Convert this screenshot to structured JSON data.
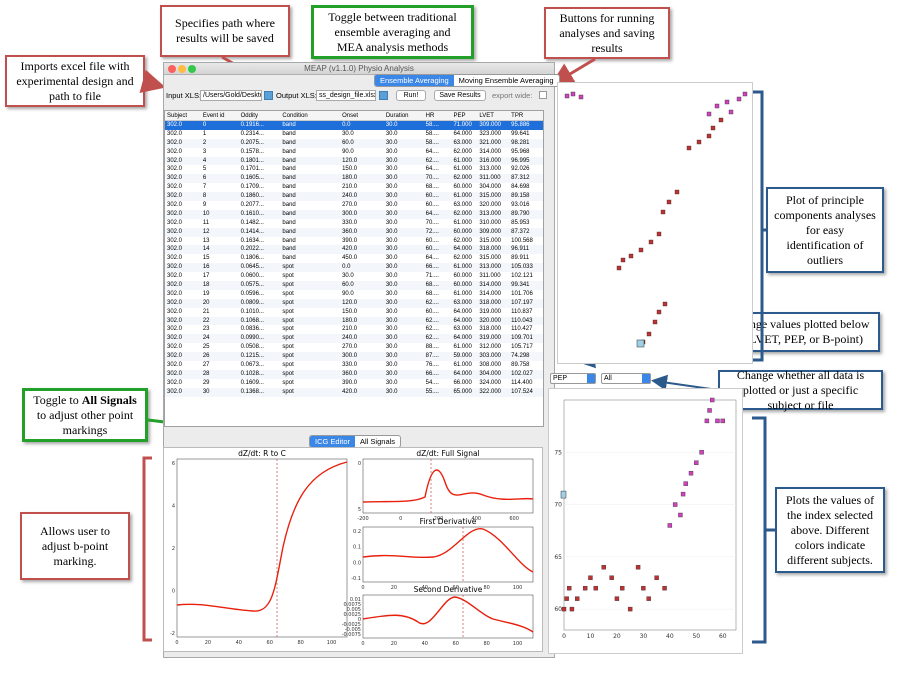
{
  "callouts": {
    "specifies_path": "Specifies path where results will be saved",
    "toggle_methods": "Toggle between traditional ensemble averaging and MEA analysis methods",
    "buttons_running": "Buttons for running analyses and saving results",
    "imports_excel": "Imports excel file with experimental design and path to file",
    "pca_plot": "Plot of principle components analyses for easy identification of outliers",
    "change_values": "Change values plotted below to LVET, PEP, or B-point)",
    "change_whether": "Change whether all data is plotted or just a specific subject or file",
    "toggle_all_signals_pre": "Toggle to ",
    "toggle_all_signals_bold": "All Signals",
    "toggle_all_signals_post": " to adjust other point markings",
    "allows_user": "Allows user to adjust b-point marking.",
    "plots_values": "Plots the values of the index selected above. Different colors indicate different subjects."
  },
  "window": {
    "title": "MEAP (v1.1.0) Physio Analysis",
    "mode_tabs": [
      "Ensemble Averaging",
      "Moving Ensemble Averaging"
    ],
    "input_label": "Input XLS:",
    "input_value": "/Users/Gold/Deskto",
    "output_label": "Output XLS:",
    "output_value": "ss_design_file.xlsx",
    "run_label": "Run!",
    "save_label": "Save Results",
    "export_label": "export wide:",
    "editor_tabs": [
      "ICG Editor",
      "All Signals"
    ],
    "index_select": "PEP",
    "subject_select": "All"
  },
  "table": {
    "columns": [
      "Subject",
      "Event id",
      "Oddity",
      "Condition",
      "Onset",
      "Duration",
      "HR",
      "PEP",
      "LVET",
      "TPR"
    ],
    "rows": [
      [
        "302.0",
        "0",
        "0.1916...",
        "band",
        "0.0",
        "30.0",
        "58....",
        "71.000",
        "309.000",
        "95.886"
      ],
      [
        "302.0",
        "1",
        "0.2314...",
        "band",
        "30.0",
        "30.0",
        "58....",
        "64.000",
        "323.000",
        "99.641"
      ],
      [
        "302.0",
        "2",
        "0.2075...",
        "band",
        "60.0",
        "30.0",
        "58....",
        "63.000",
        "321.000",
        "98.281"
      ],
      [
        "302.0",
        "3",
        "0.1578...",
        "band",
        "90.0",
        "30.0",
        "64....",
        "62.000",
        "314.000",
        "95.968"
      ],
      [
        "302.0",
        "4",
        "0.1801...",
        "band",
        "120.0",
        "30.0",
        "62....",
        "61.000",
        "316.000",
        "96.995"
      ],
      [
        "302.0",
        "5",
        "0.1701...",
        "band",
        "150.0",
        "30.0",
        "64....",
        "61.000",
        "313.000",
        "92.026"
      ],
      [
        "302.0",
        "6",
        "0.1605...",
        "band",
        "180.0",
        "30.0",
        "70....",
        "62.000",
        "311.000",
        "87.312"
      ],
      [
        "302.0",
        "7",
        "0.1709...",
        "band",
        "210.0",
        "30.0",
        "68....",
        "60.000",
        "304.000",
        "84.698"
      ],
      [
        "302.0",
        "8",
        "0.1860...",
        "band",
        "240.0",
        "30.0",
        "60....",
        "61.000",
        "315.000",
        "89.158"
      ],
      [
        "302.0",
        "9",
        "0.2077...",
        "band",
        "270.0",
        "30.0",
        "60....",
        "63.000",
        "320.000",
        "93.016"
      ],
      [
        "302.0",
        "10",
        "0.1610...",
        "band",
        "300.0",
        "30.0",
        "64....",
        "62.000",
        "313.000",
        "89.790"
      ],
      [
        "302.0",
        "11",
        "0.1482...",
        "band",
        "330.0",
        "30.0",
        "70....",
        "61.000",
        "310.000",
        "85.953"
      ],
      [
        "302.0",
        "12",
        "0.1414...",
        "band",
        "360.0",
        "30.0",
        "72....",
        "60.000",
        "309.000",
        "87.372"
      ],
      [
        "302.0",
        "13",
        "0.1634...",
        "band",
        "390.0",
        "30.0",
        "60....",
        "62.000",
        "315.000",
        "100.568"
      ],
      [
        "302.0",
        "14",
        "0.2022...",
        "band",
        "420.0",
        "30.0",
        "60....",
        "64.000",
        "318.000",
        "96.911"
      ],
      [
        "302.0",
        "15",
        "0.1806...",
        "band",
        "450.0",
        "30.0",
        "64....",
        "62.000",
        "315.000",
        "89.911"
      ],
      [
        "302.0",
        "16",
        "0.0645...",
        "spot",
        "0.0",
        "30.0",
        "66....",
        "61.000",
        "313.000",
        "105.033"
      ],
      [
        "302.0",
        "17",
        "0.0600...",
        "spot",
        "30.0",
        "30.0",
        "71....",
        "60.000",
        "311.000",
        "102.121"
      ],
      [
        "302.0",
        "18",
        "0.0575...",
        "spot",
        "60.0",
        "30.0",
        "68....",
        "60.000",
        "314.000",
        "99.341"
      ],
      [
        "302.0",
        "19",
        "0.0596...",
        "spot",
        "90.0",
        "30.0",
        "68....",
        "61.000",
        "314.000",
        "101.706"
      ],
      [
        "302.0",
        "20",
        "0.0809...",
        "spot",
        "120.0",
        "30.0",
        "62....",
        "63.000",
        "318.000",
        "107.197"
      ],
      [
        "302.0",
        "21",
        "0.1010...",
        "spot",
        "150.0",
        "30.0",
        "60....",
        "64.000",
        "319.000",
        "110.837"
      ],
      [
        "302.0",
        "22",
        "0.1068...",
        "spot",
        "180.0",
        "30.0",
        "62....",
        "64.000",
        "320.000",
        "110.043"
      ],
      [
        "302.0",
        "23",
        "0.0836...",
        "spot",
        "210.0",
        "30.0",
        "62....",
        "63.000",
        "318.000",
        "110.427"
      ],
      [
        "302.0",
        "24",
        "0.0990...",
        "spot",
        "240.0",
        "30.0",
        "62....",
        "64.000",
        "319.000",
        "109.701"
      ],
      [
        "302.0",
        "25",
        "0.0508...",
        "spot",
        "270.0",
        "30.0",
        "88....",
        "61.000",
        "312.000",
        "105.717"
      ],
      [
        "302.0",
        "26",
        "0.1215...",
        "spot",
        "300.0",
        "30.0",
        "87....",
        "59.000",
        "303.000",
        "74.298"
      ],
      [
        "302.0",
        "27",
        "0.0673...",
        "spot",
        "330.0",
        "30.0",
        "76....",
        "61.000",
        "308.000",
        "89.758"
      ],
      [
        "302.0",
        "28",
        "0.1028...",
        "spot",
        "360.0",
        "30.0",
        "66....",
        "64.000",
        "304.000",
        "102.027"
      ],
      [
        "302.0",
        "29",
        "0.1609...",
        "spot",
        "390.0",
        "30.0",
        "54....",
        "66.000",
        "324.000",
        "114.400"
      ],
      [
        "302.0",
        "30",
        "0.1368...",
        "spot",
        "420.0",
        "30.0",
        "55....",
        "65.000",
        "322.000",
        "107.524"
      ]
    ]
  },
  "icg_plots": {
    "r_to_c": {
      "title": "dZ/dt: R to C",
      "xticks": [
        "0",
        "20",
        "40",
        "60",
        "80",
        "100"
      ],
      "yticks": [
        "6",
        "4",
        "2",
        "0",
        "-2"
      ]
    },
    "full_signal": {
      "title": "dZ/dt: Full Signal",
      "xticks": [
        "-200",
        "0",
        "200",
        "400",
        "600"
      ],
      "yticks": [
        "0",
        "5"
      ]
    },
    "first_derivative": {
      "title": "First Derivative",
      "xticks": [
        "0",
        "20",
        "40",
        "60",
        "80",
        "100"
      ],
      "yticks": [
        "0.2",
        "0.1",
        "0.0",
        "-0.1"
      ]
    },
    "second_derivative": {
      "title": "Second Derivative",
      "xticks": [
        "0",
        "20",
        "40",
        "60",
        "80",
        "100"
      ],
      "yticks": [
        "0.01",
        "0.0075",
        "0.005",
        "0.0025",
        "0",
        "-0.0025",
        "-0.005",
        "-0.0075"
      ]
    }
  },
  "chart_data": [
    {
      "type": "scatter",
      "title": "",
      "series": [
        {
          "color": "#c03030",
          "x": [
            0,
            1,
            2,
            3,
            5,
            8,
            10,
            12,
            15,
            18,
            20,
            22,
            25,
            28,
            30,
            32,
            35,
            38
          ],
          "y": [
            60,
            61,
            62,
            60,
            61,
            62,
            63,
            62,
            64,
            63,
            61,
            62,
            60,
            64,
            62,
            61,
            63,
            62
          ]
        },
        {
          "color": "#d040c0",
          "x": [
            40,
            42,
            44,
            45,
            46,
            48,
            50,
            52,
            54,
            55,
            56,
            58,
            60
          ],
          "y": [
            68,
            70,
            69,
            71,
            72,
            73,
            74,
            75,
            78,
            79,
            80,
            78,
            78
          ]
        }
      ],
      "xticks": [
        "0",
        "10",
        "20",
        "30",
        "40",
        "50",
        "60"
      ],
      "yticks": [
        "60",
        "65",
        "70",
        "75"
      ]
    }
  ],
  "colors": {
    "accent": "#3b87e8",
    "red_series": "#c03030",
    "pink_series": "#d040c0",
    "curve": "#e8200c"
  }
}
